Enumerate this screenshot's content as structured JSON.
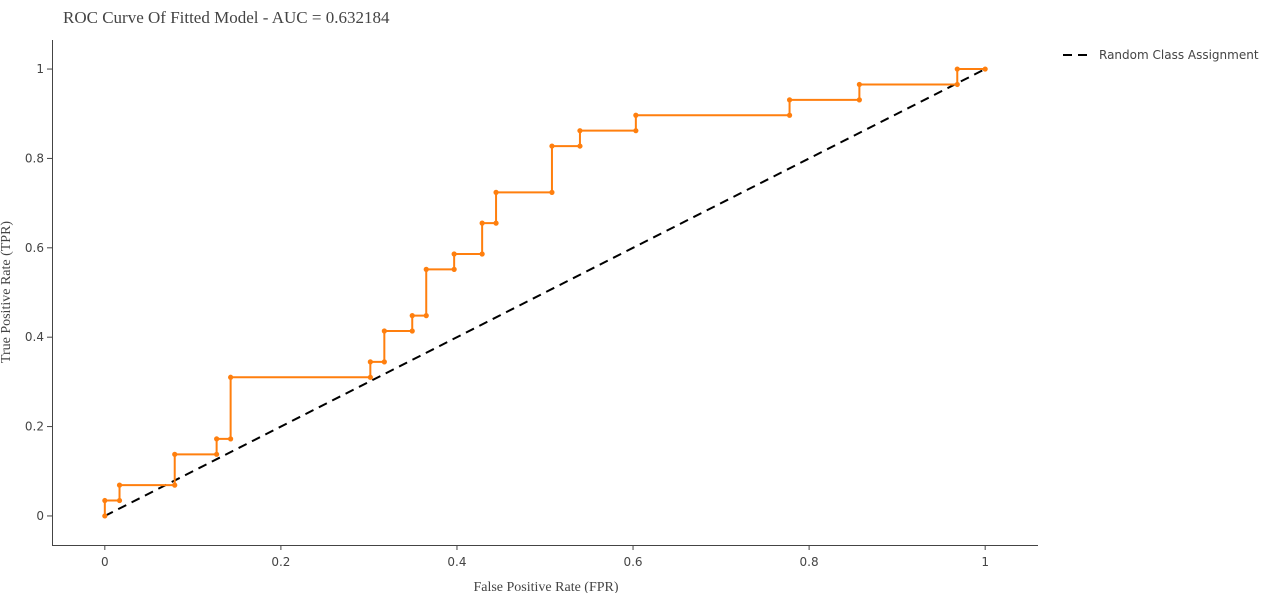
{
  "chart_data": {
    "type": "line",
    "title": "ROC Curve Of Fitted Model - AUC = 0.632184",
    "xlabel": "False Positive Rate (FPR)",
    "ylabel": "True Positive Rate (TPR)",
    "xlim": [
      -0.06,
      1.06
    ],
    "ylim": [
      -0.065,
      1.065
    ],
    "xticks": [
      0,
      0.2,
      0.4,
      0.6,
      0.8,
      1
    ],
    "xtick_labels": [
      "0",
      "0.2",
      "0.4",
      "0.6",
      "0.8",
      "1"
    ],
    "yticks": [
      0,
      0.2,
      0.4,
      0.6,
      0.8,
      1
    ],
    "ytick_labels": [
      "0",
      "0.2",
      "0.4",
      "0.6",
      "0.8",
      "1"
    ],
    "grid": false,
    "legend_position": "top-right",
    "series": [
      {
        "name": "",
        "style": "line+markers",
        "color": "#ff7f0e",
        "x": [
          0,
          0,
          0.0167,
          0.0167,
          0.0794,
          0.0794,
          0.127,
          0.127,
          0.1429,
          0.1429,
          0.3016,
          0.3016,
          0.3175,
          0.3175,
          0.3492,
          0.3492,
          0.3651,
          0.3651,
          0.3968,
          0.3968,
          0.4286,
          0.4286,
          0.4444,
          0.4444,
          0.5079,
          0.5079,
          0.5397,
          0.5397,
          0.6032,
          0.6032,
          0.7778,
          0.7778,
          0.8571,
          0.8571,
          0.9683,
          0.9683,
          1
        ],
        "y": [
          0,
          0.0345,
          0.0345,
          0.069,
          0.069,
          0.1379,
          0.1379,
          0.1724,
          0.1724,
          0.3103,
          0.3103,
          0.3448,
          0.3448,
          0.4138,
          0.4138,
          0.4483,
          0.4483,
          0.5517,
          0.5517,
          0.5862,
          0.5862,
          0.6552,
          0.6552,
          0.7241,
          0.7241,
          0.8276,
          0.8276,
          0.8621,
          0.8621,
          0.8966,
          0.8966,
          0.931,
          0.931,
          0.9655,
          0.9655,
          1,
          1
        ]
      },
      {
        "name": "Random Class Assignment",
        "style": "dashed",
        "color": "#000000",
        "x": [
          0,
          1
        ],
        "y": [
          0,
          1
        ]
      }
    ]
  }
}
